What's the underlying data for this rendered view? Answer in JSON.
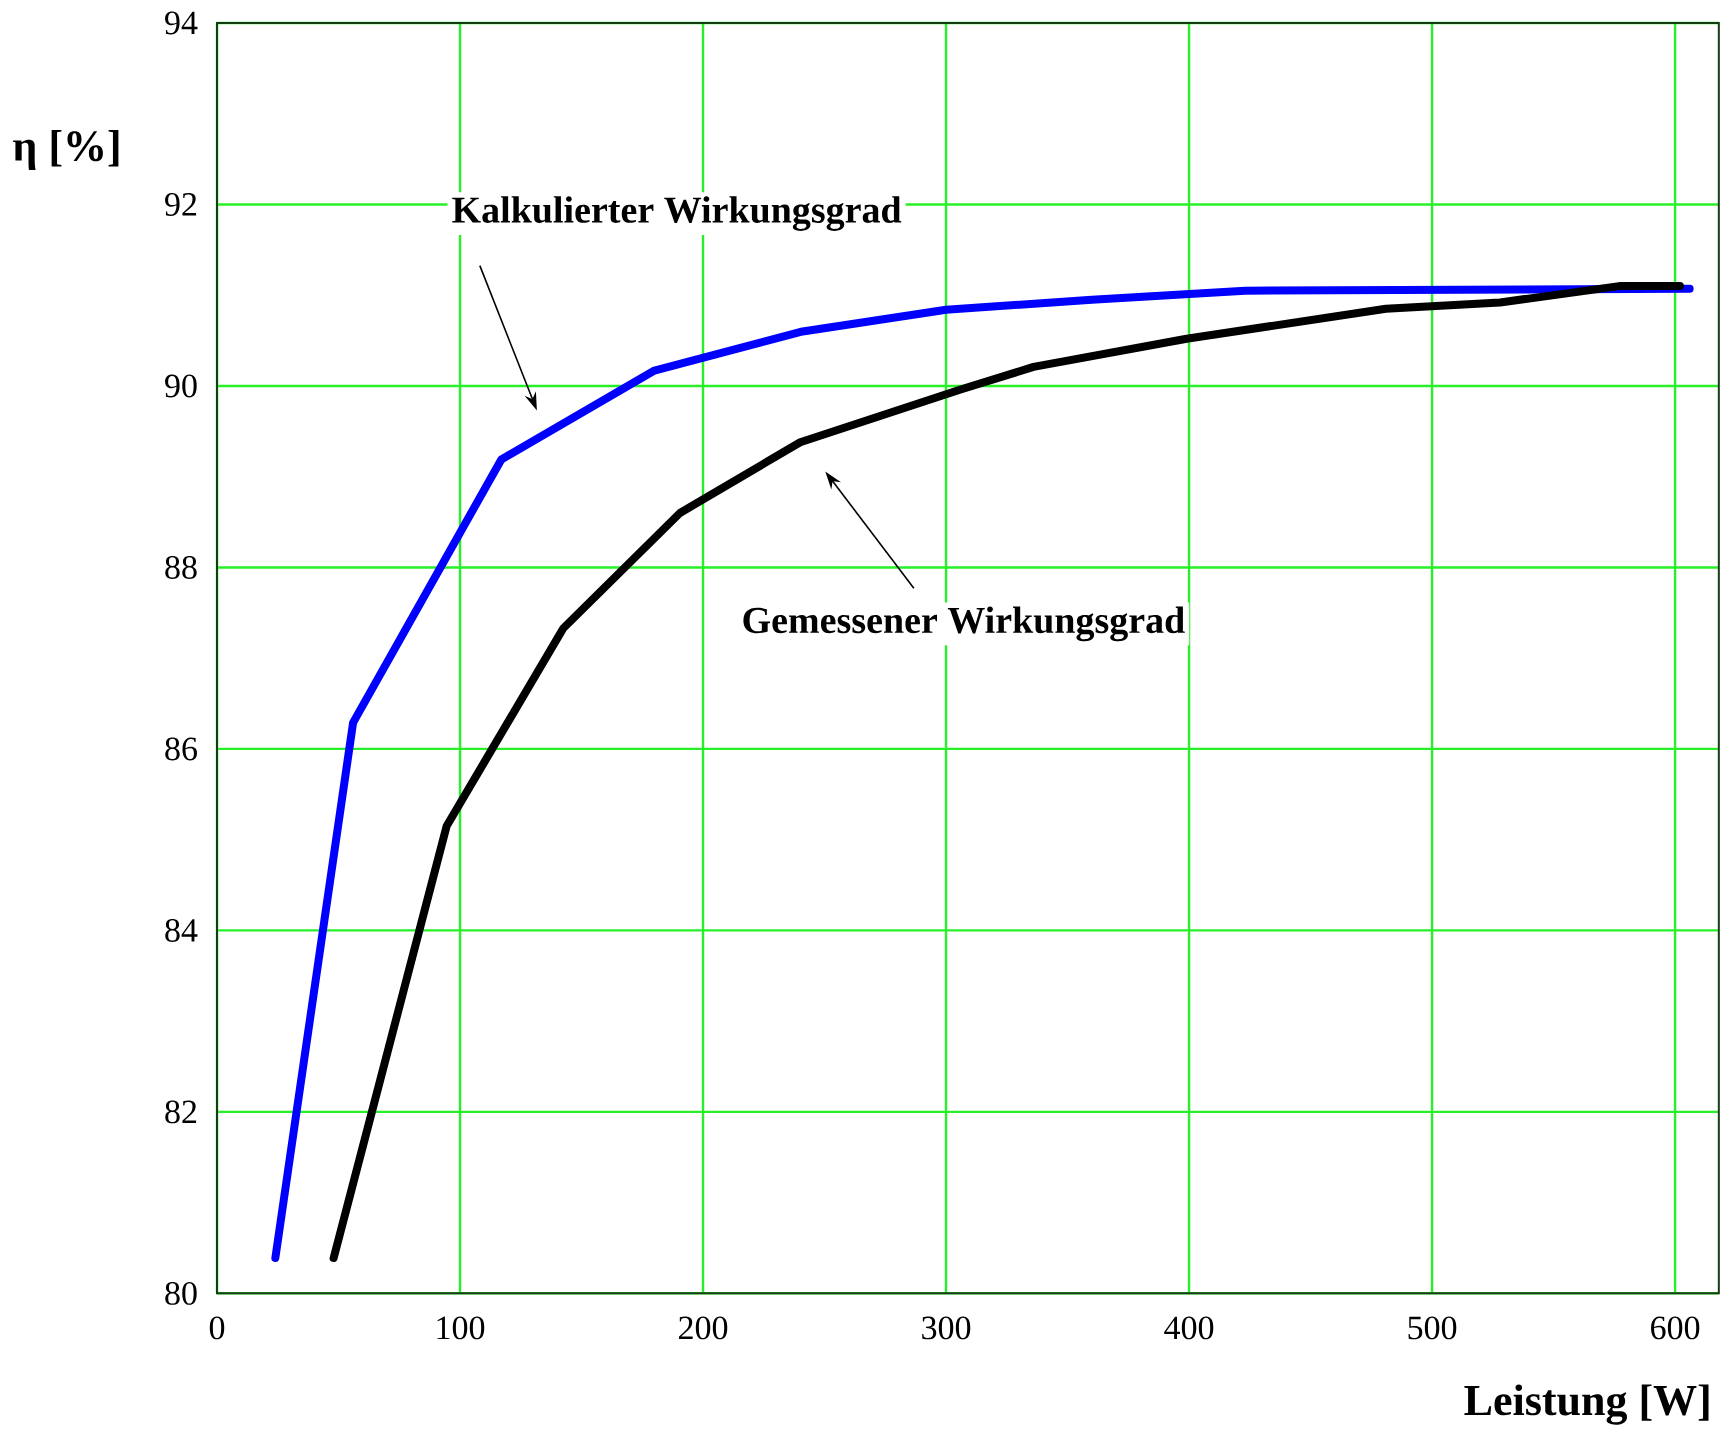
{
  "chart_data": {
    "type": "line",
    "xlabel": "Leistung [W]",
    "ylabel": "η [%]",
    "xlim": [
      0,
      618
    ],
    "ylim": [
      80,
      94
    ],
    "xticks": [
      0,
      100,
      200,
      300,
      400,
      500,
      600
    ],
    "yticks": [
      80,
      82,
      84,
      86,
      88,
      90,
      92,
      94
    ],
    "grid": true,
    "line_style": "solid",
    "marker": "none",
    "series": [
      {
        "color": "#0000ff",
        "x": [
          24,
          56,
          117,
          180,
          241,
          300,
          360,
          423,
          606
        ],
        "values": [
          80.39,
          86.29,
          89.19,
          90.17,
          90.6,
          90.84,
          90.95,
          91.05,
          91.07
        ]
      },
      {
        "color": "#000000",
        "x": [
          48,
          94.5,
          142.5,
          190.5,
          240,
          306,
          336,
          399,
          481,
          528,
          577,
          602
        ],
        "values": [
          80.39,
          85.15,
          87.33,
          88.6,
          89.38,
          89.96,
          90.21,
          90.52,
          90.85,
          90.92,
          91.1,
          91.1
        ]
      }
    ],
    "annotations": [
      "Kalkulierter Wirkungsgrad",
      "Gemessener Wirkungsgrad"
    ]
  }
}
